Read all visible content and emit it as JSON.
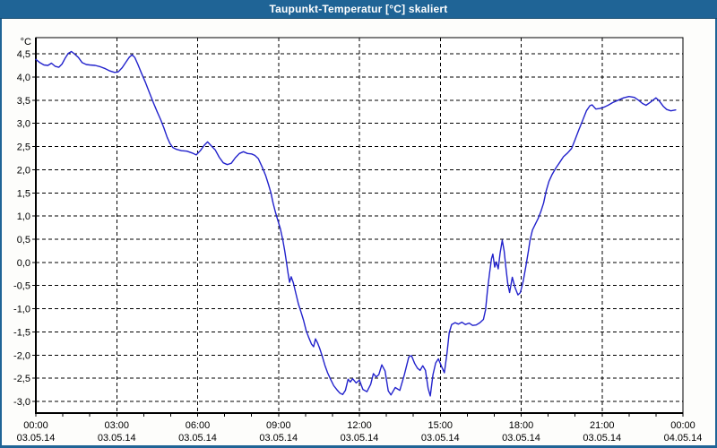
{
  "title_bar": {
    "title": "Taupunkt-Temperatur [°C] skaliert"
  },
  "colors": {
    "frame_and_titlebar": "#1F6496",
    "title_text": "#FFFFFF",
    "outer_background": "#FDFDFB",
    "plot_background": "#FFFFFF",
    "axis": "#000000",
    "grid": "#000000",
    "line": "#2222CC"
  },
  "chart_data": {
    "type": "line",
    "title": "Taupunkt-Temperatur [°C] skaliert",
    "ylabel": "°C",
    "xlabel": "",
    "grid": "dashed",
    "legend_position": "none",
    "ylim": [
      -3.25,
      4.85
    ],
    "xlim_hours": [
      0,
      24
    ],
    "minor_xtick_interval_hours": 1,
    "yticks": [
      {
        "value": 4.5,
        "label": "4,5"
      },
      {
        "value": 4.0,
        "label": "4,0"
      },
      {
        "value": 3.5,
        "label": "3,5"
      },
      {
        "value": 3.0,
        "label": "3,0"
      },
      {
        "value": 2.5,
        "label": "2,5"
      },
      {
        "value": 2.0,
        "label": "2,0"
      },
      {
        "value": 1.5,
        "label": "1,5"
      },
      {
        "value": 1.0,
        "label": "1,0"
      },
      {
        "value": 0.5,
        "label": "0,5"
      },
      {
        "value": 0.0,
        "label": "0,0"
      },
      {
        "value": -0.5,
        "label": "-0,5"
      },
      {
        "value": -1.0,
        "label": "-1,0"
      },
      {
        "value": -1.5,
        "label": "-1,5"
      },
      {
        "value": -2.0,
        "label": "-2,0"
      },
      {
        "value": -2.5,
        "label": "-2,5"
      },
      {
        "value": -3.0,
        "label": "-3,0"
      }
    ],
    "xticks": [
      {
        "hour": 0,
        "time": "00:00",
        "date": "03.05.14"
      },
      {
        "hour": 3,
        "time": "03:00",
        "date": "03.05.14"
      },
      {
        "hour": 6,
        "time": "06:00",
        "date": "03.05.14"
      },
      {
        "hour": 9,
        "time": "09:00",
        "date": "03.05.14"
      },
      {
        "hour": 12,
        "time": "12:00",
        "date": "03.05.14"
      },
      {
        "hour": 15,
        "time": "15:00",
        "date": "03.05.14"
      },
      {
        "hour": 18,
        "time": "18:00",
        "date": "03.05.14"
      },
      {
        "hour": 21,
        "time": "21:00",
        "date": "03.05.14"
      },
      {
        "hour": 24,
        "time": "00:00",
        "date": "04.05.14"
      }
    ],
    "series": [
      {
        "name": "Taupunkt-Temperatur [°C]",
        "color": "#2222CC",
        "points": [
          [
            0.0,
            4.38
          ],
          [
            0.15,
            4.31
          ],
          [
            0.3,
            4.26
          ],
          [
            0.45,
            4.25
          ],
          [
            0.58,
            4.3
          ],
          [
            0.72,
            4.23
          ],
          [
            0.85,
            4.21
          ],
          [
            0.97,
            4.28
          ],
          [
            1.08,
            4.4
          ],
          [
            1.2,
            4.51
          ],
          [
            1.32,
            4.55
          ],
          [
            1.45,
            4.49
          ],
          [
            1.58,
            4.42
          ],
          [
            1.72,
            4.31
          ],
          [
            1.87,
            4.27
          ],
          [
            2.0,
            4.26
          ],
          [
            2.2,
            4.25
          ],
          [
            2.4,
            4.22
          ],
          [
            2.58,
            4.18
          ],
          [
            2.75,
            4.13
          ],
          [
            2.92,
            4.1
          ],
          [
            3.05,
            4.11
          ],
          [
            3.2,
            4.2
          ],
          [
            3.35,
            4.33
          ],
          [
            3.47,
            4.43
          ],
          [
            3.57,
            4.48
          ],
          [
            3.67,
            4.42
          ],
          [
            3.78,
            4.28
          ],
          [
            3.92,
            4.08
          ],
          [
            4.07,
            3.88
          ],
          [
            4.22,
            3.65
          ],
          [
            4.37,
            3.43
          ],
          [
            4.5,
            3.25
          ],
          [
            4.63,
            3.08
          ],
          [
            4.75,
            2.9
          ],
          [
            4.87,
            2.7
          ],
          [
            4.97,
            2.57
          ],
          [
            5.08,
            2.48
          ],
          [
            5.22,
            2.44
          ],
          [
            5.4,
            2.41
          ],
          [
            5.6,
            2.4
          ],
          [
            5.8,
            2.36
          ],
          [
            5.95,
            2.32
          ],
          [
            6.1,
            2.41
          ],
          [
            6.25,
            2.53
          ],
          [
            6.37,
            2.6
          ],
          [
            6.5,
            2.52
          ],
          [
            6.65,
            2.43
          ],
          [
            6.8,
            2.27
          ],
          [
            6.95,
            2.15
          ],
          [
            7.1,
            2.11
          ],
          [
            7.25,
            2.14
          ],
          [
            7.4,
            2.26
          ],
          [
            7.55,
            2.35
          ],
          [
            7.7,
            2.39
          ],
          [
            7.85,
            2.35
          ],
          [
            8.0,
            2.34
          ],
          [
            8.12,
            2.31
          ],
          [
            8.25,
            2.24
          ],
          [
            8.4,
            2.05
          ],
          [
            8.52,
            1.88
          ],
          [
            8.63,
            1.68
          ],
          [
            8.72,
            1.5
          ],
          [
            8.8,
            1.28
          ],
          [
            8.88,
            1.1
          ],
          [
            8.97,
            0.92
          ],
          [
            9.07,
            0.72
          ],
          [
            9.16,
            0.48
          ],
          [
            9.23,
            0.25
          ],
          [
            9.29,
            0.02
          ],
          [
            9.35,
            -0.22
          ],
          [
            9.41,
            -0.43
          ],
          [
            9.47,
            -0.31
          ],
          [
            9.55,
            -0.44
          ],
          [
            9.64,
            -0.66
          ],
          [
            9.74,
            -0.9
          ],
          [
            9.84,
            -1.08
          ],
          [
            9.93,
            -1.25
          ],
          [
            10.03,
            -1.48
          ],
          [
            10.13,
            -1.63
          ],
          [
            10.22,
            -1.76
          ],
          [
            10.3,
            -1.82
          ],
          [
            10.37,
            -1.65
          ],
          [
            10.45,
            -1.74
          ],
          [
            10.53,
            -1.86
          ],
          [
            10.62,
            -2.02
          ],
          [
            10.72,
            -2.22
          ],
          [
            10.82,
            -2.38
          ],
          [
            10.93,
            -2.52
          ],
          [
            11.05,
            -2.66
          ],
          [
            11.17,
            -2.75
          ],
          [
            11.28,
            -2.82
          ],
          [
            11.38,
            -2.85
          ],
          [
            11.48,
            -2.76
          ],
          [
            11.58,
            -2.52
          ],
          [
            11.66,
            -2.58
          ],
          [
            11.75,
            -2.51
          ],
          [
            11.88,
            -2.6
          ],
          [
            12.0,
            -2.54
          ],
          [
            12.13,
            -2.74
          ],
          [
            12.28,
            -2.79
          ],
          [
            12.42,
            -2.63
          ],
          [
            12.52,
            -2.4
          ],
          [
            12.62,
            -2.47
          ],
          [
            12.72,
            -2.42
          ],
          [
            12.83,
            -2.21
          ],
          [
            12.95,
            -2.34
          ],
          [
            13.07,
            -2.77
          ],
          [
            13.17,
            -2.86
          ],
          [
            13.33,
            -2.7
          ],
          [
            13.5,
            -2.76
          ],
          [
            13.67,
            -2.42
          ],
          [
            13.83,
            -2.04
          ],
          [
            13.93,
            -2.01
          ],
          [
            14.05,
            -2.18
          ],
          [
            14.15,
            -2.28
          ],
          [
            14.25,
            -2.33
          ],
          [
            14.35,
            -2.23
          ],
          [
            14.45,
            -2.33
          ],
          [
            14.55,
            -2.72
          ],
          [
            14.63,
            -2.88
          ],
          [
            14.73,
            -2.42
          ],
          [
            14.83,
            -2.17
          ],
          [
            14.93,
            -2.08
          ],
          [
            15.05,
            -2.25
          ],
          [
            15.15,
            -2.38
          ],
          [
            15.25,
            -1.95
          ],
          [
            15.33,
            -1.52
          ],
          [
            15.42,
            -1.34
          ],
          [
            15.55,
            -1.3
          ],
          [
            15.67,
            -1.33
          ],
          [
            15.8,
            -1.29
          ],
          [
            15.93,
            -1.34
          ],
          [
            16.07,
            -1.31
          ],
          [
            16.2,
            -1.36
          ],
          [
            16.33,
            -1.35
          ],
          [
            16.47,
            -1.3
          ],
          [
            16.6,
            -1.23
          ],
          [
            16.68,
            -1.02
          ],
          [
            16.75,
            -0.6
          ],
          [
            16.83,
            -0.22
          ],
          [
            16.9,
            0.08
          ],
          [
            16.95,
            0.18
          ],
          [
            17.02,
            -0.1
          ],
          [
            17.08,
            0.01
          ],
          [
            17.15,
            -0.14
          ],
          [
            17.22,
            0.2
          ],
          [
            17.3,
            0.48
          ],
          [
            17.37,
            0.25
          ],
          [
            17.43,
            -0.1
          ],
          [
            17.5,
            -0.45
          ],
          [
            17.57,
            -0.65
          ],
          [
            17.67,
            -0.32
          ],
          [
            17.77,
            -0.54
          ],
          [
            17.88,
            -0.7
          ],
          [
            17.97,
            -0.65
          ],
          [
            18.07,
            -0.42
          ],
          [
            18.17,
            -0.1
          ],
          [
            18.27,
            0.25
          ],
          [
            18.33,
            0.48
          ],
          [
            18.42,
            0.7
          ],
          [
            18.53,
            0.83
          ],
          [
            18.63,
            0.95
          ],
          [
            18.73,
            1.1
          ],
          [
            18.83,
            1.28
          ],
          [
            18.93,
            1.55
          ],
          [
            19.03,
            1.75
          ],
          [
            19.15,
            1.9
          ],
          [
            19.28,
            2.03
          ],
          [
            19.42,
            2.15
          ],
          [
            19.57,
            2.28
          ],
          [
            19.72,
            2.36
          ],
          [
            19.87,
            2.46
          ],
          [
            20.0,
            2.65
          ],
          [
            20.13,
            2.85
          ],
          [
            20.27,
            3.05
          ],
          [
            20.42,
            3.27
          ],
          [
            20.55,
            3.38
          ],
          [
            20.63,
            3.4
          ],
          [
            20.77,
            3.31
          ],
          [
            20.92,
            3.32
          ],
          [
            21.07,
            3.35
          ],
          [
            21.22,
            3.39
          ],
          [
            21.4,
            3.45
          ],
          [
            21.6,
            3.5
          ],
          [
            21.8,
            3.55
          ],
          [
            22.0,
            3.58
          ],
          [
            22.2,
            3.56
          ],
          [
            22.35,
            3.5
          ],
          [
            22.5,
            3.43
          ],
          [
            22.63,
            3.39
          ],
          [
            22.8,
            3.46
          ],
          [
            23.0,
            3.55
          ],
          [
            23.13,
            3.48
          ],
          [
            23.27,
            3.37
          ],
          [
            23.4,
            3.3
          ],
          [
            23.55,
            3.27
          ],
          [
            23.73,
            3.29
          ]
        ]
      }
    ]
  }
}
